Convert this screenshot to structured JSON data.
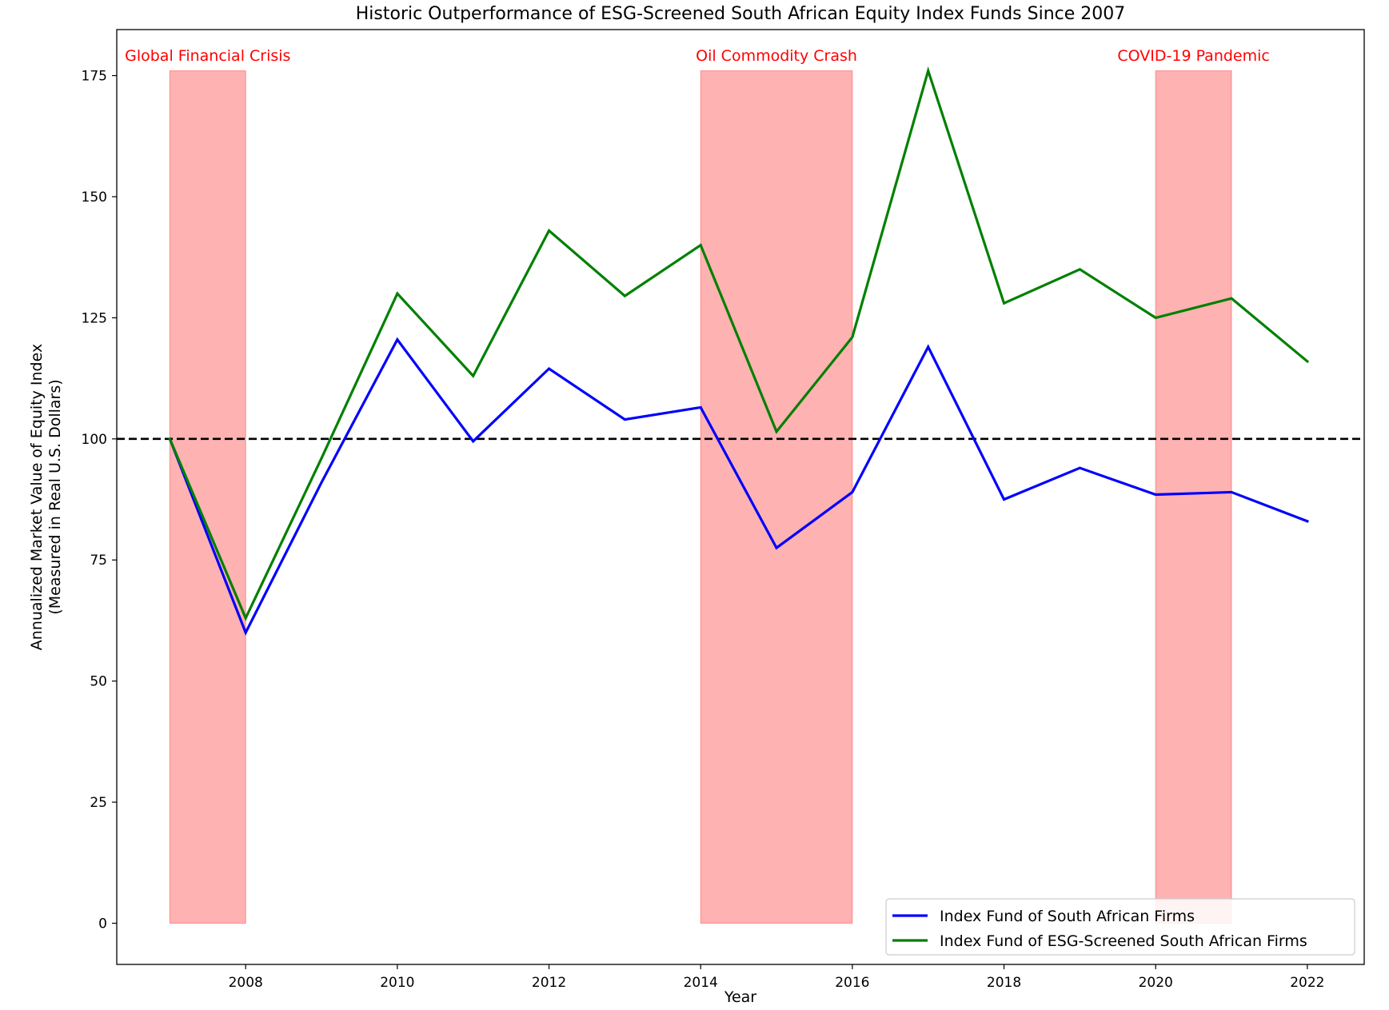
{
  "chart_data": {
    "type": "line",
    "title": "Historic Outperformance of ESG-Screened South African Equity Index Funds Since 2007",
    "xlabel": "Year",
    "ylabel_line1": "Annualized Market Value of Equity Index",
    "ylabel_line2": "(Measured in Real U.S. Dollars)",
    "xlim": [
      2006.3,
      2022.75
    ],
    "ylim": [
      -8.5,
      184.5
    ],
    "x_ticks": [
      2008,
      2010,
      2012,
      2014,
      2016,
      2018,
      2020,
      2022
    ],
    "x_tick_labels": [
      "2008",
      "2010",
      "2012",
      "2014",
      "2016",
      "2018",
      "2020",
      "2022"
    ],
    "y_ticks": [
      0,
      25,
      50,
      75,
      100,
      125,
      150,
      175
    ],
    "y_tick_labels": [
      "0",
      "25",
      "50",
      "75",
      "100",
      "125",
      "150",
      "175"
    ],
    "grid": false,
    "x": [
      2007,
      2008,
      2009,
      2010,
      2011,
      2012,
      2013,
      2014,
      2015,
      2016,
      2017,
      2018,
      2019,
      2020,
      2021,
      2022
    ],
    "series": [
      {
        "name": "Index Fund of South African Firms",
        "color": "#0000ff",
        "values": [
          100,
          60,
          91,
          120.5,
          99.5,
          114.5,
          104,
          106.5,
          77.5,
          89,
          119,
          87.5,
          94,
          88.5,
          89,
          83
        ]
      },
      {
        "name": "Index Fund of ESG-Screened South African Firms",
        "color": "#008000",
        "values": [
          100,
          63,
          96,
          130,
          113,
          143,
          129.5,
          140,
          101.5,
          121,
          176,
          128,
          135,
          125,
          129,
          116
        ]
      }
    ],
    "reference_line": {
      "y": 100,
      "style": "dashed",
      "color": "#000000"
    },
    "shaded_regions": [
      {
        "label": "Global Financial Crisis",
        "x_start": 2007,
        "x_end": 2008,
        "y_start": 0,
        "y_end": 176,
        "color": "#ff0000"
      },
      {
        "label": "Oil Commodity Crash",
        "x_start": 2014,
        "x_end": 2016,
        "y_start": 0,
        "y_end": 176,
        "color": "#ff0000"
      },
      {
        "label": "COVID-19 Pandemic",
        "x_start": 2020,
        "x_end": 2021,
        "y_start": 0,
        "y_end": 176,
        "color": "#ff0000"
      }
    ],
    "legend": {
      "position": "lower right",
      "entries": [
        "Index Fund of South African Firms",
        "Index Fund of ESG-Screened South African Firms"
      ]
    }
  }
}
